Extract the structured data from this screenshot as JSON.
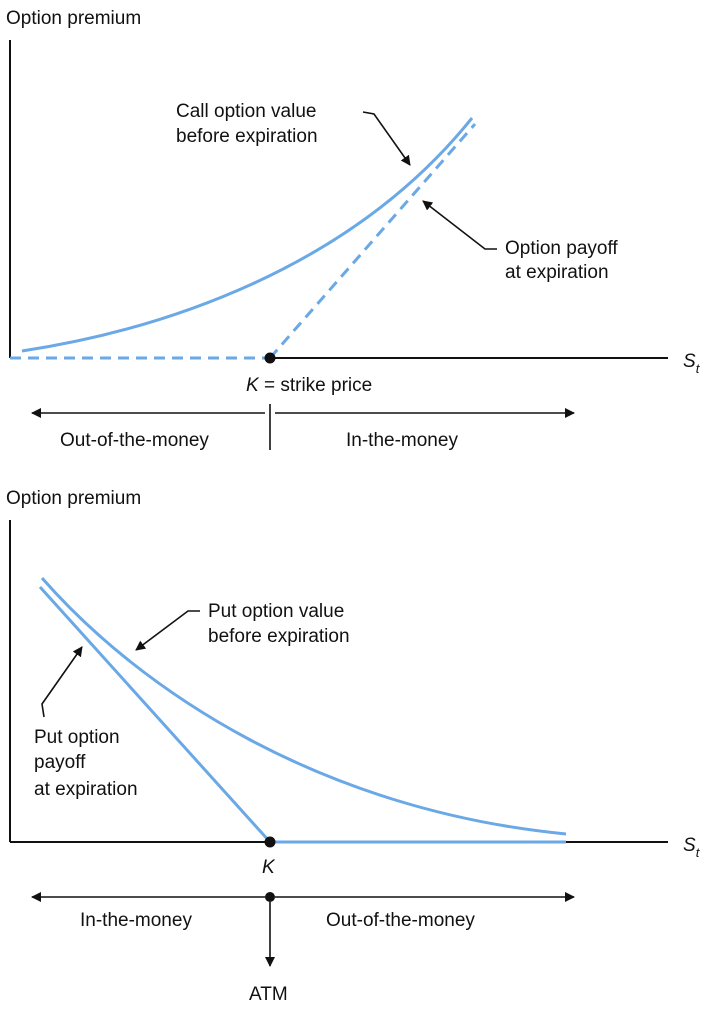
{
  "call_diagram": {
    "y_axis_label": "Option premium",
    "x_axis_label": "S",
    "x_axis_subscript": "t",
    "curve_label_line1": "Call option value",
    "curve_label_line2": "before expiration",
    "payoff_label_line1": "Option payoff",
    "payoff_label_line2": "at expiration",
    "strike_symbol": "K",
    "strike_text": " = strike price",
    "left_region": "Out-of-the-money",
    "right_region": "In-the-money"
  },
  "put_diagram": {
    "y_axis_label": "Option premium",
    "x_axis_label": "S",
    "x_axis_subscript": "t",
    "curve_label_line1": "Put option value",
    "curve_label_line2": "before expiration",
    "payoff_label_line1": "Put option",
    "payoff_label_line2": "payoff",
    "payoff_label_line3": "at expiration",
    "strike_symbol": "K",
    "left_region": "In-the-money",
    "right_region": "Out-of-the-money",
    "atm_label": "ATM"
  },
  "colors": {
    "curve": "#6aa8e6",
    "axis": "#111111"
  }
}
